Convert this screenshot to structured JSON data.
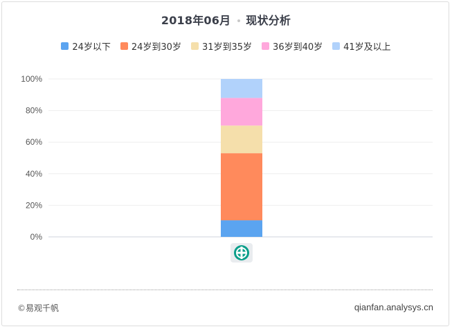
{
  "chart_data": {
    "type": "bar",
    "stacked": true,
    "title": "2018年06月",
    "subtitle": "现状分析",
    "categories": [
      ""
    ],
    "yticks": [
      "0%",
      "20%",
      "40%",
      "60%",
      "80%",
      "100%"
    ],
    "ylim": [
      0,
      100
    ],
    "grid": true,
    "legend_position": "top",
    "series": [
      {
        "name": "24岁以下",
        "values": [
          10.5
        ],
        "color": "#5ba4f0"
      },
      {
        "name": "24岁到30岁",
        "values": [
          42.5
        ],
        "color": "#ff8a5c"
      },
      {
        "name": "31岁到35岁",
        "values": [
          17.5
        ],
        "color": "#f5dfab"
      },
      {
        "name": "36岁到40岁",
        "values": [
          17.5
        ],
        "color": "#ffa8dc"
      },
      {
        "name": "41岁及以上",
        "values": [
          12
        ],
        "color": "#b1d2fb"
      }
    ]
  },
  "category_icon": "bank-logo-icon",
  "footer": {
    "source": "©易观千帆",
    "site": "qianfan.analysys.cn"
  }
}
